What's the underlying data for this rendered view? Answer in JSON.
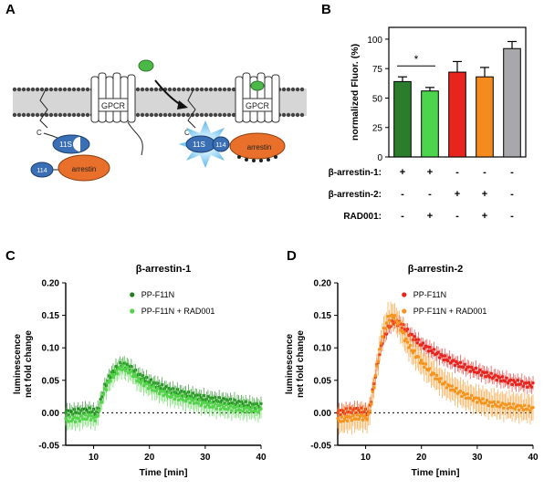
{
  "panels": {
    "A": {
      "letter": "A",
      "labels": {
        "gpcr_left": "GPCR",
        "gpcr_right": "GPCR",
        "c_left": "C",
        "c_right": "C",
        "s11_left": "11S",
        "s11_right": "11S",
        "l114_left": "114",
        "l114_right": "114",
        "arrestin_left": "arrestin",
        "arrestin_right": "arrestin"
      },
      "colors": {
        "membrane": "#bcbcbc",
        "s11": "#3a6fb5",
        "arrestin": "#e8702a",
        "ligand": "#4cb848",
        "glow": "#5ab7e8"
      }
    },
    "B": {
      "letter": "B"
    },
    "C": {
      "letter": "C"
    },
    "D": {
      "letter": "D"
    }
  },
  "chart_data": [
    {
      "panel": "B",
      "type": "bar",
      "ylabel": "normalized Fluor. (%)",
      "ylim": [
        0,
        110
      ],
      "yticks": [
        0,
        25,
        50,
        75,
        100
      ],
      "bars": [
        {
          "value": 64,
          "error": 4,
          "color": "#2a7d2a"
        },
        {
          "value": 56,
          "error": 3,
          "color": "#4cd44c"
        },
        {
          "value": 72,
          "error": 9,
          "color": "#e8241f"
        },
        {
          "value": 68,
          "error": 8,
          "color": "#f58a1f"
        },
        {
          "value": 92,
          "error": 6,
          "color": "#a8a8ac"
        }
      ],
      "condition_rows": [
        {
          "label": "β-arrestin-1:",
          "marks": [
            "+",
            "+",
            "-",
            "-",
            "-"
          ]
        },
        {
          "label": "β-arrestin-2:",
          "marks": [
            "-",
            "-",
            "+",
            "+",
            "-"
          ]
        },
        {
          "label": "RAD001:",
          "marks": [
            "-",
            "+",
            "-",
            "+",
            "-"
          ]
        }
      ],
      "significance": {
        "between": [
          0,
          1
        ],
        "label": "*"
      }
    },
    {
      "panel": "C",
      "type": "line",
      "title": "β-arrestin-1",
      "xlabel": "Time [min]",
      "ylabel_lines": [
        "luminescence",
        "net fold change"
      ],
      "xlim": [
        5,
        40
      ],
      "ylim": [
        -0.05,
        0.2
      ],
      "xticks": [
        10,
        20,
        30,
        40
      ],
      "yticks": [
        -0.05,
        0.0,
        0.05,
        0.1,
        0.15,
        0.2
      ],
      "ytick_labels": [
        "-0.05",
        "0.00",
        "0.05",
        "0.10",
        "0.15",
        "0.20"
      ],
      "legend_position": "top-right",
      "series": [
        {
          "name": "PP-F11N",
          "color": "#1f7f1f",
          "x": [
            5,
            6,
            7,
            8,
            9,
            10,
            10.5,
            11,
            12,
            13,
            14,
            15,
            16,
            17,
            18,
            20,
            22,
            24,
            26,
            28,
            30,
            32,
            34,
            36,
            38,
            40
          ],
          "y": [
            0.0,
            0.001,
            0.002,
            0.003,
            0.004,
            0.002,
            0.0,
            0.01,
            0.04,
            0.058,
            0.068,
            0.075,
            0.072,
            0.066,
            0.058,
            0.048,
            0.04,
            0.034,
            0.03,
            0.026,
            0.022,
            0.02,
            0.018,
            0.015,
            0.012,
            0.01
          ],
          "error": 0.012
        },
        {
          "name": "PP-F11N + RAD001",
          "color": "#54d44a",
          "x": [
            5,
            6,
            7,
            8,
            9,
            10,
            10.5,
            11,
            12,
            13,
            14,
            15,
            16,
            17,
            18,
            20,
            22,
            24,
            26,
            28,
            30,
            32,
            34,
            36,
            38,
            40
          ],
          "y": [
            -0.012,
            -0.01,
            -0.01,
            -0.008,
            -0.006,
            -0.008,
            -0.01,
            0.005,
            0.035,
            0.052,
            0.062,
            0.07,
            0.066,
            0.06,
            0.05,
            0.04,
            0.032,
            0.026,
            0.022,
            0.018,
            0.013,
            0.01,
            0.008,
            0.006,
            0.005,
            0.004
          ],
          "error": 0.016
        }
      ]
    },
    {
      "panel": "D",
      "type": "line",
      "title": "β-arrestin-2",
      "xlabel": "Time [min]",
      "ylabel_lines": [
        "luminescence",
        "net fold change"
      ],
      "xlim": [
        5,
        40
      ],
      "ylim": [
        -0.05,
        0.2
      ],
      "xticks": [
        10,
        20,
        30,
        40
      ],
      "yticks": [
        -0.05,
        0.0,
        0.05,
        0.1,
        0.15,
        0.2
      ],
      "ytick_labels": [
        "-0.05",
        "0.00",
        "0.05",
        "0.10",
        "0.15",
        "0.20"
      ],
      "legend_position": "top-right",
      "series": [
        {
          "name": "PP-F11N",
          "color": "#e8241f",
          "x": [
            5,
            6,
            7,
            8,
            9,
            10,
            10.5,
            11,
            12,
            13,
            14,
            15,
            16,
            17,
            18,
            20,
            22,
            24,
            26,
            28,
            30,
            32,
            34,
            36,
            38,
            40
          ],
          "y": [
            0.0,
            0.002,
            0.003,
            0.004,
            0.004,
            0.002,
            0.0,
            0.02,
            0.07,
            0.11,
            0.13,
            0.14,
            0.138,
            0.13,
            0.12,
            0.105,
            0.095,
            0.085,
            0.077,
            0.07,
            0.064,
            0.058,
            0.053,
            0.048,
            0.045,
            0.042
          ],
          "error": 0.012
        },
        {
          "name": "PP-F11N + RAD001",
          "color": "#f7941d",
          "x": [
            5,
            6,
            7,
            8,
            9,
            10,
            10.5,
            11,
            12,
            13,
            14,
            15,
            16,
            17,
            18,
            20,
            22,
            24,
            26,
            28,
            30,
            32,
            34,
            36,
            38,
            40
          ],
          "y": [
            -0.012,
            -0.01,
            -0.008,
            -0.008,
            -0.006,
            -0.008,
            -0.006,
            0.015,
            0.07,
            0.12,
            0.145,
            0.15,
            0.135,
            0.115,
            0.1,
            0.078,
            0.06,
            0.045,
            0.035,
            0.026,
            0.02,
            0.015,
            0.012,
            0.01,
            0.008,
            0.006
          ],
          "error": 0.022
        }
      ]
    }
  ]
}
